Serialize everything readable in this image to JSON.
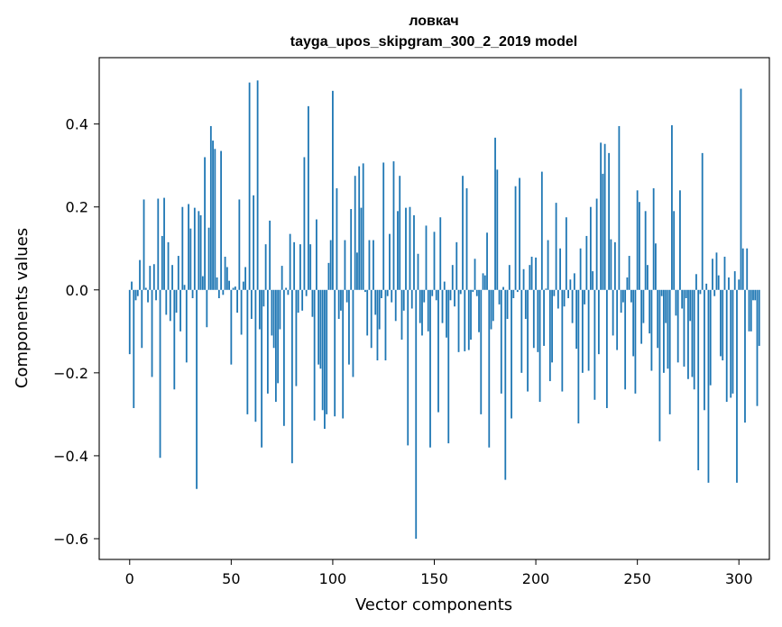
{
  "chart_data": {
    "type": "bar",
    "title": "ловкач",
    "subtitle": "tayga_upos_skipgram_300_2_2019 model",
    "xlabel": "Vector components",
    "ylabel": "Components values",
    "xlim": [
      -15,
      315
    ],
    "ylim": [
      -0.65,
      0.56
    ],
    "x_ticks": [
      0,
      50,
      100,
      150,
      200,
      250,
      300
    ],
    "x_tick_labels": [
      "0",
      "50",
      "100",
      "150",
      "200",
      "250",
      "300"
    ],
    "y_ticks": [
      -0.6,
      -0.4,
      -0.2,
      0.0,
      0.2,
      0.4
    ],
    "y_tick_labels": [
      "−0.6",
      "−0.4",
      "−0.2",
      "0.0",
      "0.2",
      "0.4"
    ],
    "bar_color": "#1f77b4",
    "values": [
      -0.155,
      0.02,
      -0.285,
      -0.025,
      -0.015,
      0.072,
      -0.14,
      0.218,
      0.005,
      -0.03,
      0.058,
      -0.21,
      0.062,
      -0.025,
      0.22,
      -0.405,
      0.13,
      0.222,
      -0.06,
      0.115,
      -0.075,
      0.06,
      -0.24,
      -0.055,
      0.082,
      -0.1,
      0.2,
      0.012,
      -0.175,
      0.207,
      0.148,
      -0.02,
      0.198,
      -0.48,
      0.19,
      0.18,
      0.033,
      0.32,
      -0.09,
      0.15,
      0.395,
      0.36,
      0.34,
      0.03,
      -0.02,
      0.335,
      -0.012,
      0.08,
      0.055,
      0.022,
      -0.18,
      0.005,
      0.008,
      -0.055,
      0.218,
      -0.108,
      0.02,
      0.055,
      -0.3,
      0.5,
      -0.07,
      0.228,
      -0.318,
      0.505,
      -0.095,
      -0.38,
      -0.04,
      0.11,
      -0.25,
      0.167,
      -0.11,
      -0.14,
      -0.27,
      -0.225,
      -0.095,
      0.058,
      -0.328,
      0.005,
      -0.012,
      0.135,
      -0.418,
      0.115,
      -0.232,
      -0.055,
      0.11,
      -0.05,
      0.32,
      -0.015,
      0.443,
      0.11,
      -0.065,
      -0.315,
      0.17,
      -0.18,
      -0.19,
      -0.29,
      -0.335,
      -0.3,
      0.065,
      0.12,
      0.48,
      -0.305,
      0.245,
      -0.07,
      -0.05,
      -0.31,
      0.12,
      -0.03,
      -0.18,
      0.195,
      -0.21,
      0.275,
      0.09,
      0.298,
      0.198,
      0.305,
      -0.005,
      -0.11,
      0.12,
      -0.14,
      0.12,
      -0.06,
      -0.17,
      -0.095,
      -0.02,
      0.307,
      -0.17,
      -0.015,
      0.135,
      -0.03,
      0.31,
      -0.075,
      0.19,
      0.275,
      -0.12,
      -0.05,
      0.198,
      -0.375,
      0.2,
      -0.045,
      0.18,
      -0.6,
      0.087,
      -0.08,
      -0.11,
      -0.03,
      0.155,
      -0.1,
      -0.38,
      -0.015,
      0.14,
      -0.025,
      -0.295,
      0.175,
      -0.08,
      0.02,
      -0.115,
      -0.37,
      -0.025,
      0.06,
      -0.04,
      0.115,
      -0.15,
      -0.01,
      0.275,
      -0.148,
      0.245,
      -0.145,
      -0.12,
      -0.005,
      0.075,
      -0.015,
      -0.102,
      -0.3,
      0.04,
      0.035,
      0.138,
      -0.38,
      -0.095,
      -0.075,
      0.367,
      0.29,
      -0.035,
      -0.25,
      0.007,
      -0.458,
      -0.07,
      0.06,
      -0.31,
      -0.02,
      0.25,
      -0.005,
      0.27,
      -0.2,
      0.05,
      -0.07,
      -0.245,
      0.06,
      0.08,
      -0.14,
      0.078,
      -0.15,
      -0.27,
      0.285,
      -0.135,
      0.003,
      0.12,
      -0.22,
      -0.175,
      -0.015,
      0.21,
      -0.045,
      0.1,
      -0.245,
      -0.04,
      0.175,
      -0.02,
      0.025,
      -0.08,
      0.04,
      -0.142,
      -0.322,
      0.1,
      -0.2,
      -0.035,
      0.13,
      -0.195,
      0.2,
      0.045,
      -0.265,
      0.22,
      -0.155,
      0.355,
      0.28,
      0.352,
      -0.285,
      0.33,
      0.122,
      -0.11,
      0.115,
      -0.145,
      0.395,
      -0.055,
      -0.03,
      -0.24,
      0.03,
      0.082,
      -0.03,
      -0.16,
      -0.25,
      0.24,
      0.212,
      -0.13,
      -0.08,
      0.19,
      0.06,
      -0.105,
      -0.195,
      0.245,
      0.112,
      -0.14,
      -0.365,
      -0.015,
      -0.2,
      -0.08,
      -0.19,
      -0.3,
      0.397,
      0.19,
      -0.062,
      -0.175,
      0.24,
      -0.045,
      -0.185,
      -0.02,
      -0.215,
      -0.075,
      -0.21,
      -0.24,
      0.038,
      -0.435,
      -0.01,
      0.33,
      -0.29,
      0.015,
      -0.465,
      -0.23,
      0.075,
      -0.015,
      0.09,
      0.035,
      -0.16,
      -0.17,
      0.08,
      -0.27,
      0.03,
      -0.26,
      -0.25,
      0.045,
      -0.465,
      0.025,
      0.485,
      0.1,
      -0.32,
      0.1,
      -0.1,
      -0.1,
      -0.025,
      -0.025,
      -0.28,
      -0.135
    ]
  }
}
